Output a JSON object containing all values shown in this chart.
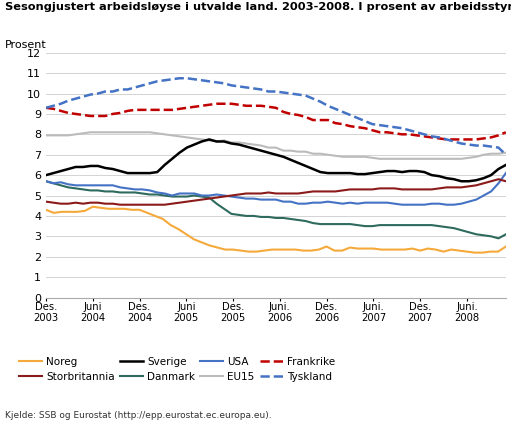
{
  "title": "Sesongjustert arbeidsløyse i utvalde land. 2003-2008. I prosent av arbeidsstyrken",
  "ylabel": "Prosent",
  "source": "Kjelde: SSB og Eurostat (http://epp.eurostat.ec.europa.eu).",
  "ylim": [
    0,
    12
  ],
  "yticks": [
    0,
    1,
    2,
    3,
    4,
    5,
    6,
    7,
    8,
    9,
    10,
    11,
    12
  ],
  "xtick_labels": [
    "Des.\n2003",
    "Juni\n2004",
    "Des.\n2004",
    "Juni\n2005",
    "Des.\n2005",
    "Juni.\n2006",
    "Des.\n2006",
    "Juni.\n2007",
    "Des.\n2007",
    "Juni.\n2008"
  ],
  "series": {
    "Noreg": {
      "color": "#F4A93A",
      "linestyle": "-",
      "linewidth": 1.5,
      "values": [
        4.3,
        4.15,
        4.2,
        4.2,
        4.2,
        4.25,
        4.45,
        4.4,
        4.35,
        4.35,
        4.35,
        4.3,
        4.3,
        4.15,
        4.0,
        3.85,
        3.55,
        3.35,
        3.1,
        2.85,
        2.7,
        2.55,
        2.45,
        2.35,
        2.35,
        2.3,
        2.25,
        2.25,
        2.3,
        2.35,
        2.35,
        2.35,
        2.35,
        2.3,
        2.3,
        2.35,
        2.5,
        2.3,
        2.3,
        2.45,
        2.4,
        2.4,
        2.4,
        2.35,
        2.35,
        2.35,
        2.35,
        2.4,
        2.3,
        2.4,
        2.35,
        2.25,
        2.35,
        2.3,
        2.25,
        2.2,
        2.2,
        2.25,
        2.25,
        2.5
      ]
    },
    "USA": {
      "color": "#4472C4",
      "linestyle": "-",
      "linewidth": 1.5,
      "values": [
        5.7,
        5.6,
        5.65,
        5.55,
        5.5,
        5.5,
        5.5,
        5.5,
        5.5,
        5.5,
        5.4,
        5.35,
        5.3,
        5.3,
        5.25,
        5.15,
        5.1,
        5.0,
        5.1,
        5.1,
        5.1,
        5.0,
        5.0,
        5.05,
        5.0,
        4.95,
        4.9,
        4.85,
        4.85,
        4.8,
        4.8,
        4.8,
        4.7,
        4.7,
        4.6,
        4.6,
        4.65,
        4.65,
        4.7,
        4.65,
        4.6,
        4.65,
        4.6,
        4.65,
        4.65,
        4.65,
        4.65,
        4.6,
        4.55,
        4.55,
        4.55,
        4.55,
        4.6,
        4.6,
        4.55,
        4.55,
        4.6,
        4.7,
        4.8,
        5.0,
        5.2,
        5.6,
        6.1
      ]
    },
    "Storbritannia": {
      "color": "#8B1A1A",
      "linestyle": "-",
      "linewidth": 1.5,
      "values": [
        4.7,
        4.65,
        4.6,
        4.6,
        4.65,
        4.6,
        4.65,
        4.65,
        4.6,
        4.6,
        4.55,
        4.55,
        4.55,
        4.55,
        4.55,
        4.55,
        4.55,
        4.6,
        4.65,
        4.7,
        4.75,
        4.8,
        4.85,
        4.9,
        4.95,
        5.0,
        5.05,
        5.1,
        5.1,
        5.1,
        5.15,
        5.1,
        5.1,
        5.1,
        5.1,
        5.15,
        5.2,
        5.2,
        5.2,
        5.2,
        5.25,
        5.3,
        5.3,
        5.3,
        5.3,
        5.35,
        5.35,
        5.35,
        5.3,
        5.3,
        5.3,
        5.3,
        5.3,
        5.35,
        5.4,
        5.4,
        5.4,
        5.45,
        5.5,
        5.6,
        5.7,
        5.8,
        5.7
      ]
    },
    "EU15": {
      "color": "#BBBBBB",
      "linestyle": "-",
      "linewidth": 1.5,
      "values": [
        7.95,
        7.95,
        7.95,
        7.95,
        8.0,
        8.05,
        8.1,
        8.1,
        8.1,
        8.1,
        8.1,
        8.1,
        8.1,
        8.1,
        8.1,
        8.05,
        8.0,
        7.95,
        7.9,
        7.85,
        7.8,
        7.75,
        7.7,
        7.65,
        7.7,
        7.6,
        7.6,
        7.55,
        7.5,
        7.45,
        7.35,
        7.35,
        7.2,
        7.2,
        7.15,
        7.15,
        7.05,
        7.05,
        7.0,
        6.95,
        6.9,
        6.9,
        6.9,
        6.9,
        6.85,
        6.8,
        6.8,
        6.8,
        6.8,
        6.8,
        6.8,
        6.8,
        6.8,
        6.8,
        6.8,
        6.8,
        6.8,
        6.85,
        6.9,
        7.0,
        7.05,
        7.05,
        7.1
      ]
    },
    "Sverige": {
      "color": "#000000",
      "linestyle": "-",
      "linewidth": 1.8,
      "values": [
        6.0,
        6.1,
        6.2,
        6.3,
        6.4,
        6.4,
        6.45,
        6.45,
        6.35,
        6.3,
        6.2,
        6.1,
        6.1,
        6.1,
        6.1,
        6.15,
        6.5,
        6.8,
        7.1,
        7.35,
        7.5,
        7.65,
        7.75,
        7.65,
        7.65,
        7.55,
        7.5,
        7.4,
        7.3,
        7.2,
        7.1,
        7.0,
        6.9,
        6.75,
        6.6,
        6.45,
        6.3,
        6.15,
        6.1,
        6.1,
        6.1,
        6.1,
        6.05,
        6.05,
        6.1,
        6.15,
        6.2,
        6.2,
        6.15,
        6.2,
        6.2,
        6.15,
        6.0,
        5.95,
        5.85,
        5.8,
        5.7,
        5.7,
        5.75,
        5.85,
        6.0,
        6.3,
        6.5
      ]
    },
    "Danmark": {
      "color": "#2E6B5E",
      "linestyle": "-",
      "linewidth": 1.5,
      "values": [
        5.7,
        5.6,
        5.5,
        5.4,
        5.35,
        5.3,
        5.25,
        5.25,
        5.2,
        5.2,
        5.15,
        5.15,
        5.15,
        5.1,
        5.05,
        5.05,
        5.0,
        4.95,
        4.95,
        4.95,
        5.0,
        4.95,
        4.9,
        4.6,
        4.35,
        4.1,
        4.05,
        4.0,
        4.0,
        3.95,
        3.95,
        3.9,
        3.9,
        3.85,
        3.8,
        3.75,
        3.65,
        3.6,
        3.6,
        3.6,
        3.6,
        3.6,
        3.55,
        3.5,
        3.5,
        3.55,
        3.55,
        3.55,
        3.55,
        3.55,
        3.55,
        3.55,
        3.55,
        3.5,
        3.45,
        3.4,
        3.3,
        3.2,
        3.1,
        3.05,
        3.0,
        2.9,
        3.1
      ]
    },
    "Frankrike": {
      "color": "#C00000",
      "linestyle": "--",
      "linewidth": 1.8,
      "values": [
        9.3,
        9.25,
        9.15,
        9.05,
        9.0,
        8.95,
        8.9,
        8.9,
        8.9,
        9.0,
        9.05,
        9.15,
        9.2,
        9.2,
        9.2,
        9.2,
        9.2,
        9.2,
        9.25,
        9.3,
        9.35,
        9.4,
        9.45,
        9.5,
        9.5,
        9.5,
        9.45,
        9.4,
        9.4,
        9.4,
        9.35,
        9.3,
        9.1,
        9.0,
        8.95,
        8.85,
        8.7,
        8.7,
        8.7,
        8.55,
        8.5,
        8.4,
        8.35,
        8.3,
        8.2,
        8.1,
        8.1,
        8.05,
        8.0,
        8.0,
        7.95,
        7.9,
        7.85,
        7.8,
        7.75,
        7.75,
        7.75,
        7.75,
        7.75,
        7.8,
        7.85,
        7.95,
        8.1
      ]
    },
    "Tyskland": {
      "color": "#4472C4",
      "linestyle": "--",
      "linewidth": 1.8,
      "values": [
        9.3,
        9.4,
        9.5,
        9.65,
        9.75,
        9.85,
        9.95,
        10.0,
        10.1,
        10.1,
        10.2,
        10.2,
        10.3,
        10.4,
        10.5,
        10.6,
        10.65,
        10.7,
        10.75,
        10.75,
        10.7,
        10.65,
        10.6,
        10.55,
        10.5,
        10.4,
        10.35,
        10.3,
        10.25,
        10.2,
        10.1,
        10.1,
        10.05,
        10.0,
        9.95,
        9.9,
        9.75,
        9.6,
        9.4,
        9.25,
        9.1,
        8.95,
        8.8,
        8.65,
        8.5,
        8.45,
        8.4,
        8.35,
        8.3,
        8.2,
        8.1,
        8.0,
        7.9,
        7.85,
        7.75,
        7.65,
        7.55,
        7.5,
        7.45,
        7.45,
        7.4,
        7.35,
        7.0
      ]
    }
  },
  "legend_rows": [
    [
      "Noreg",
      "Storbritannia",
      "Sverige",
      "Danmark"
    ],
    [
      "USA",
      "EU15",
      "Frankrike",
      "Tyskland"
    ]
  ],
  "background_color": "#ffffff",
  "grid_color": "#cccccc"
}
